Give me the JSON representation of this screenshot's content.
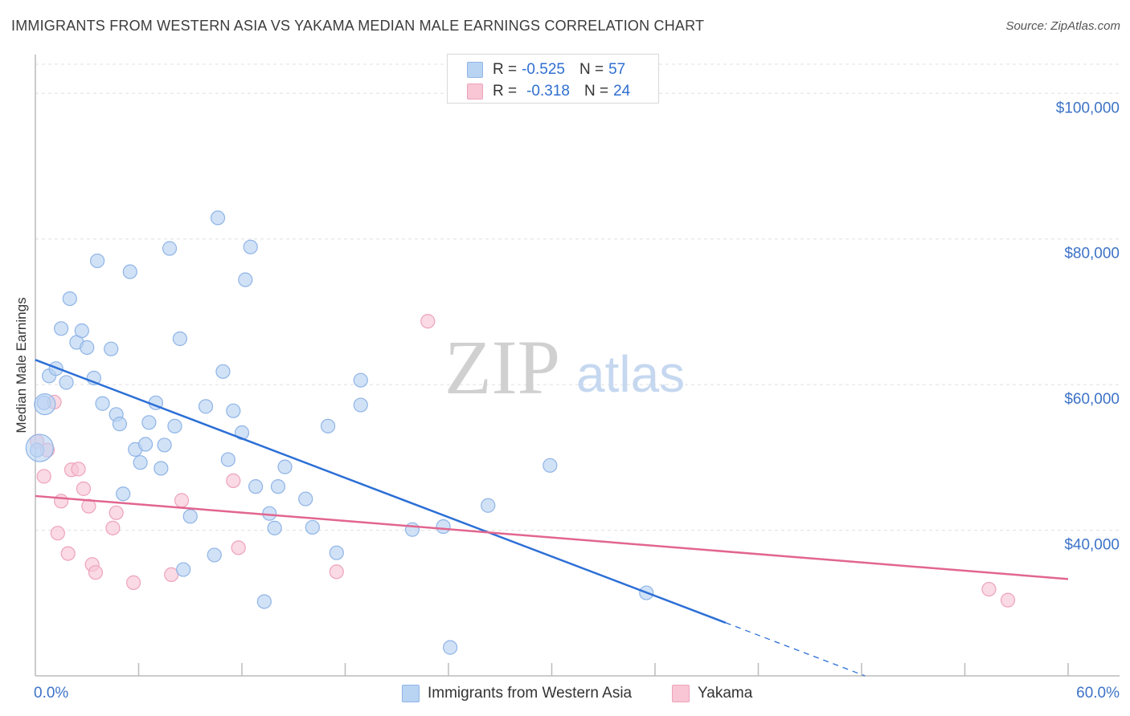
{
  "header": {
    "title": "IMMIGRANTS FROM WESTERN ASIA VS YAKAMA MEDIAN MALE EARNINGS CORRELATION CHART",
    "source": "Source: ZipAtlas.com"
  },
  "watermark": {
    "part1": "ZIP",
    "part2": "atlas"
  },
  "stats_legend": {
    "rows": [
      {
        "r_label": "R =",
        "r_value": "-0.525",
        "n_label": "N =",
        "n_value": "57"
      },
      {
        "r_label": "R =",
        "r_value": "-0.318",
        "n_label": "N =",
        "n_value": "24"
      }
    ]
  },
  "colors": {
    "blue_fill": "#b9d3f3",
    "blue_stroke": "#8fb4e6",
    "blue_line": "#2c6fd6",
    "pink_fill": "#f8c6d5",
    "pink_stroke": "#eea3bb",
    "pink_line": "#e2668f",
    "tick_text": "#3d73c7",
    "grid": "#e0e0e0"
  },
  "chart_data": {
    "type": "scatter",
    "title": "IMMIGRANTS FROM WESTERN ASIA VS YAKAMA MEDIAN MALE EARNINGS CORRELATION CHART",
    "xlabel": "",
    "ylabel": "Median Male Earnings",
    "xlim": [
      0,
      60
    ],
    "ylim": [
      20000,
      104000
    ],
    "x_tick_labels": [
      "0.0%",
      "60.0%"
    ],
    "y_ticks": [
      40000,
      60000,
      80000,
      100000
    ],
    "y_tick_labels": [
      "$40,000",
      "$60,000",
      "$80,000",
      "$100,000"
    ],
    "grid": true,
    "legend_position": "bottom",
    "series": [
      {
        "name": "Immigrants from Western Asia",
        "points": [
          [
            0.1,
            51000
          ],
          [
            0.5,
            57500
          ],
          [
            0.8,
            61200
          ],
          [
            1.2,
            62200
          ],
          [
            1.5,
            67700
          ],
          [
            1.8,
            60300
          ],
          [
            2.0,
            71800
          ],
          [
            2.4,
            65800
          ],
          [
            2.7,
            67400
          ],
          [
            3.0,
            65100
          ],
          [
            3.4,
            60900
          ],
          [
            3.6,
            77000
          ],
          [
            3.9,
            57400
          ],
          [
            4.4,
            64900
          ],
          [
            4.7,
            55900
          ],
          [
            4.9,
            54600
          ],
          [
            5.1,
            45000
          ],
          [
            5.5,
            75500
          ],
          [
            5.8,
            51100
          ],
          [
            6.1,
            49300
          ],
          [
            6.4,
            51800
          ],
          [
            6.6,
            54800
          ],
          [
            7.0,
            57500
          ],
          [
            7.3,
            48500
          ],
          [
            7.5,
            51700
          ],
          [
            7.8,
            78700
          ],
          [
            8.1,
            54300
          ],
          [
            8.4,
            66300
          ],
          [
            8.6,
            34600
          ],
          [
            9.0,
            41900
          ],
          [
            9.9,
            57000
          ],
          [
            10.4,
            36600
          ],
          [
            10.6,
            82900
          ],
          [
            10.9,
            61800
          ],
          [
            11.2,
            49700
          ],
          [
            11.5,
            56400
          ],
          [
            12.0,
            53400
          ],
          [
            12.2,
            74400
          ],
          [
            12.5,
            78900
          ],
          [
            12.8,
            46000
          ],
          [
            13.3,
            30200
          ],
          [
            13.6,
            42300
          ],
          [
            13.9,
            40300
          ],
          [
            14.1,
            46000
          ],
          [
            14.5,
            48700
          ],
          [
            15.7,
            44300
          ],
          [
            16.1,
            40400
          ],
          [
            17.0,
            54300
          ],
          [
            17.5,
            36900
          ],
          [
            18.9,
            60600
          ],
          [
            18.9,
            57200
          ],
          [
            21.9,
            40100
          ],
          [
            23.7,
            40500
          ],
          [
            24.1,
            23900
          ],
          [
            26.3,
            43400
          ],
          [
            29.9,
            48900
          ],
          [
            35.5,
            31400
          ]
        ],
        "trend": {
          "x": [
            0,
            40.1
          ],
          "y": [
            63400,
            27300
          ],
          "dashed_to": {
            "x": 48.2,
            "y": 20000
          }
        }
      },
      {
        "name": "Yakama",
        "points": [
          [
            0.1,
            52200
          ],
          [
            0.5,
            47400
          ],
          [
            0.7,
            51000
          ],
          [
            1.1,
            57600
          ],
          [
            1.3,
            39600
          ],
          [
            1.5,
            44000
          ],
          [
            1.9,
            36800
          ],
          [
            2.1,
            48300
          ],
          [
            2.5,
            48400
          ],
          [
            2.8,
            45700
          ],
          [
            3.1,
            43300
          ],
          [
            3.3,
            35300
          ],
          [
            3.5,
            34200
          ],
          [
            4.5,
            40300
          ],
          [
            4.7,
            42400
          ],
          [
            5.7,
            32800
          ],
          [
            7.9,
            33900
          ],
          [
            8.5,
            44100
          ],
          [
            11.5,
            46800
          ],
          [
            11.8,
            37600
          ],
          [
            17.5,
            34300
          ],
          [
            22.8,
            68700
          ],
          [
            55.4,
            31900
          ],
          [
            56.5,
            30400
          ]
        ],
        "trend": {
          "x": [
            0,
            60
          ],
          "y": [
            44700,
            33300
          ]
        }
      }
    ]
  }
}
